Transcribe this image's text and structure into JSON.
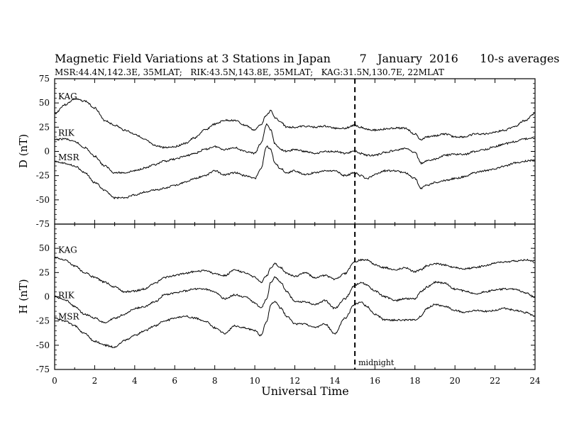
{
  "chart_data": {
    "type": "line",
    "title": "Magnetic Field Variations at 3 Stations in Japan        7   January  2016      10-s averages",
    "subtitle": "MSR:44.4N,142.3E, 35MLAT;   RIK:43.5N,143.8E, 35MLAT;   KAG:31.5N,130.7E, 22MLAT",
    "xlabel": "Universal Time",
    "xlim": [
      0,
      24
    ],
    "xticks": [
      0,
      2,
      4,
      6,
      8,
      10,
      12,
      14,
      16,
      18,
      20,
      22,
      24
    ],
    "annotation": {
      "x": 15,
      "label": "midnight"
    },
    "panels": [
      {
        "ylabel": "D (nT)",
        "ylim": [
          -75,
          75
        ],
        "yticks": [
          75,
          50,
          25,
          0,
          -25,
          -50,
          -75
        ],
        "x": [
          0,
          0.5,
          1,
          1.5,
          2,
          2.5,
          3,
          3.5,
          4,
          4.5,
          5,
          5.5,
          6,
          6.5,
          7,
          7.5,
          8,
          8.5,
          9,
          9.5,
          10,
          10.3,
          10.6,
          10.8,
          11,
          11.3,
          11.6,
          12,
          12.5,
          13,
          13.5,
          14,
          14.5,
          15,
          15.3,
          15.6,
          16,
          16.5,
          17,
          17.5,
          18,
          18.3,
          18.6,
          19,
          19.5,
          20,
          20.5,
          21,
          21.5,
          22,
          22.5,
          23,
          23.5,
          24
        ],
        "series": [
          {
            "name": "KAG",
            "values": [
              39,
              48,
              54,
              52,
              45,
              32,
              27,
              22,
              18,
              12,
              6,
              4,
              5,
              8,
              14,
              22,
              28,
              32,
              32,
              27,
              22,
              28,
              38,
              42,
              35,
              30,
              25,
              25,
              26,
              25,
              26,
              24,
              24,
              27,
              25,
              23,
              22,
              23,
              24,
              24,
              18,
              12,
              15,
              16,
              18,
              15,
              15,
              18,
              18,
              20,
              22,
              26,
              32,
              39
            ]
          },
          {
            "name": "RIK",
            "values": [
              12,
              13,
              10,
              4,
              -5,
              -15,
              -22,
              -22,
              -20,
              -17,
              -14,
              -10,
              -8,
              -5,
              -2,
              2,
              5,
              2,
              4,
              0,
              -2,
              8,
              28,
              22,
              8,
              2,
              0,
              2,
              0,
              -2,
              0,
              0,
              -2,
              0,
              -2,
              -4,
              -4,
              -1,
              1,
              3,
              -1,
              -12,
              -10,
              -8,
              -4,
              -3,
              -3,
              0,
              2,
              5,
              8,
              10,
              13,
              14
            ]
          },
          {
            "name": "MSR",
            "values": [
              -10,
              -12,
              -15,
              -22,
              -32,
              -40,
              -48,
              -48,
              -45,
              -42,
              -40,
              -38,
              -35,
              -32,
              -28,
              -25,
              -20,
              -24,
              -22,
              -25,
              -28,
              -18,
              5,
              2,
              -12,
              -18,
              -22,
              -20,
              -24,
              -22,
              -20,
              -20,
              -25,
              -22,
              -25,
              -28,
              -24,
              -20,
              -20,
              -22,
              -28,
              -38,
              -35,
              -32,
              -30,
              -28,
              -26,
              -22,
              -20,
              -18,
              -15,
              -12,
              -10,
              -9
            ]
          }
        ]
      },
      {
        "ylabel": "H (nT)",
        "ylim": [
          -75,
          75
        ],
        "yticks": [
          75,
          50,
          25,
          0,
          -25,
          -50,
          -75
        ],
        "x": [
          0,
          0.5,
          1,
          1.5,
          2,
          2.5,
          3,
          3.5,
          4,
          4.5,
          5,
          5.5,
          6,
          6.5,
          7,
          7.5,
          8,
          8.5,
          9,
          9.5,
          10,
          10.3,
          10.6,
          10.8,
          11,
          11.3,
          11.6,
          12,
          12.5,
          13,
          13.5,
          14,
          14.5,
          15,
          15.3,
          15.6,
          16,
          16.5,
          17,
          17.5,
          18,
          18.3,
          18.6,
          19,
          19.5,
          20,
          20.5,
          21,
          21.5,
          22,
          22.5,
          23,
          23.5,
          24
        ],
        "series": [
          {
            "name": "KAG",
            "values": [
              41,
              38,
              32,
              25,
              20,
              15,
              10,
              5,
              6,
              8,
              14,
              20,
              22,
              24,
              26,
              27,
              24,
              22,
              28,
              25,
              20,
              15,
              22,
              30,
              34,
              30,
              24,
              21,
              25,
              20,
              22,
              18,
              24,
              36,
              38,
              38,
              33,
              30,
              28,
              30,
              26,
              28,
              32,
              34,
              33,
              30,
              29,
              30,
              32,
              35,
              36,
              37,
              38,
              37
            ]
          },
          {
            "name": "RIK",
            "values": [
              0,
              -3,
              -10,
              -18,
              -22,
              -27,
              -22,
              -18,
              -12,
              -10,
              -5,
              2,
              4,
              6,
              8,
              8,
              5,
              -2,
              2,
              0,
              -6,
              -12,
              -2,
              15,
              20,
              15,
              5,
              -5,
              -5,
              -8,
              -4,
              -12,
              -2,
              12,
              15,
              12,
              6,
              0,
              -4,
              -2,
              -2,
              5,
              10,
              15,
              14,
              8,
              6,
              3,
              5,
              7,
              8,
              8,
              4,
              0
            ]
          },
          {
            "name": "MSR",
            "values": [
              -22,
              -25,
              -30,
              -38,
              -46,
              -50,
              -52,
              -45,
              -40,
              -35,
              -30,
              -25,
              -22,
              -20,
              -22,
              -25,
              -32,
              -38,
              -30,
              -32,
              -35,
              -40,
              -25,
              -8,
              -5,
              -12,
              -20,
              -28,
              -28,
              -32,
              -28,
              -38,
              -22,
              -8,
              -5,
              -10,
              -18,
              -24,
              -24,
              -24,
              -24,
              -20,
              -12,
              -8,
              -10,
              -14,
              -16,
              -14,
              -15,
              -14,
              -12,
              -14,
              -16,
              -20
            ]
          }
        ]
      }
    ]
  }
}
